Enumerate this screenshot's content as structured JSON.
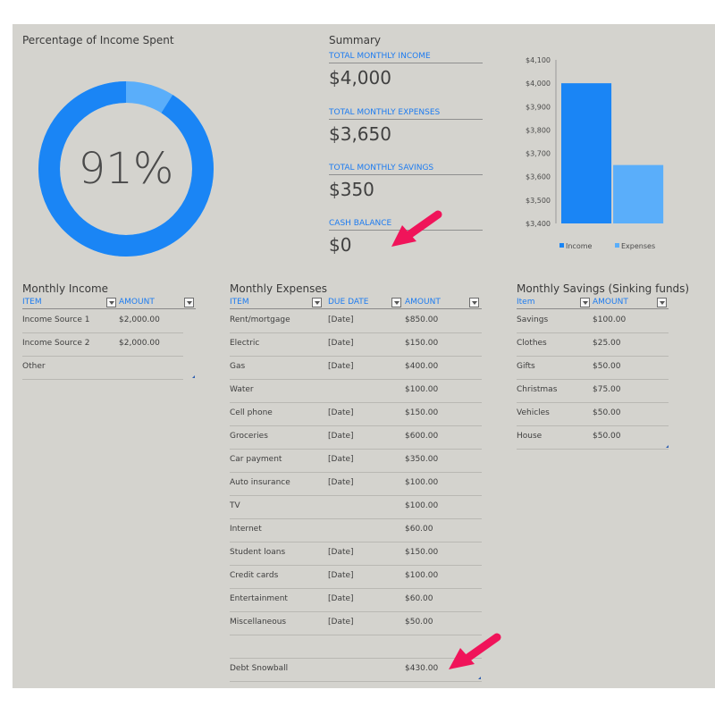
{
  "donut": {
    "title": "Percentage of Income Spent",
    "percent_label": "91%",
    "percent_value": 0.91,
    "colors": {
      "spent": "#1a85f5",
      "remaining": "#5aaefa"
    }
  },
  "summary": {
    "title": "Summary",
    "items": [
      {
        "label": "TOTAL MONTHLY INCOME",
        "value": "$4,000"
      },
      {
        "label": "TOTAL MONTHLY EXPENSES",
        "value": "$3,650"
      },
      {
        "label": "TOTAL MONTHLY SAVINGS",
        "value": "$350"
      },
      {
        "label": "CASH BALANCE",
        "value": "$0"
      }
    ]
  },
  "chart_data": {
    "type": "bar",
    "categories": [
      "Income",
      "Expenses"
    ],
    "values": [
      4000,
      3650
    ],
    "colors": [
      "#1a85f5",
      "#5aaefa"
    ],
    "ylim": [
      3400,
      4100
    ],
    "yticks": [
      "$3,400",
      "$3,500",
      "$3,600",
      "$3,700",
      "$3,800",
      "$3,900",
      "$4,000",
      "$4,100"
    ],
    "ytick_values": [
      3400,
      3500,
      3600,
      3700,
      3800,
      3900,
      4000,
      4100
    ],
    "legend": [
      "Income",
      "Expenses"
    ],
    "legend_position": "bottom",
    "grid": false
  },
  "income": {
    "title": "Monthly Income",
    "headers": [
      "ITEM",
      "AMOUNT"
    ],
    "rows": [
      [
        "Income Source 1",
        "$2,000.00"
      ],
      [
        "Income Source 2",
        "$2,000.00"
      ],
      [
        "Other",
        ""
      ]
    ]
  },
  "expenses": {
    "title": "Monthly Expenses",
    "headers": [
      "ITEM",
      "DUE DATE",
      "AMOUNT"
    ],
    "rows": [
      [
        "Rent/mortgage",
        "[Date]",
        "$850.00"
      ],
      [
        "Electric",
        "[Date]",
        "$150.00"
      ],
      [
        "Gas",
        "[Date]",
        "$400.00"
      ],
      [
        "Water",
        "",
        "$100.00"
      ],
      [
        "Cell phone",
        "[Date]",
        "$150.00"
      ],
      [
        "Groceries",
        "[Date]",
        "$600.00"
      ],
      [
        "Car payment",
        "[Date]",
        "$350.00"
      ],
      [
        "Auto insurance",
        "[Date]",
        "$100.00"
      ],
      [
        "TV",
        "",
        "$100.00"
      ],
      [
        "Internet",
        "",
        "$60.00"
      ],
      [
        "Student loans",
        "[Date]",
        "$150.00"
      ],
      [
        "Credit cards",
        "[Date]",
        "$100.00"
      ],
      [
        "Entertainment",
        "[Date]",
        "$60.00"
      ],
      [
        "Miscellaneous",
        "[Date]",
        "$50.00"
      ],
      [
        "",
        "",
        ""
      ],
      [
        "Debt Snowball",
        "",
        "$430.00"
      ]
    ]
  },
  "savings": {
    "title": "Monthly Savings (Sinking funds)",
    "headers": [
      "Item",
      "AMOUNT"
    ],
    "rows": [
      [
        "Savings",
        "$100.00"
      ],
      [
        "Clothes",
        "$25.00"
      ],
      [
        "Gifts",
        "$50.00"
      ],
      [
        "Christmas",
        "$75.00"
      ],
      [
        "Vehicles",
        "$50.00"
      ],
      [
        "House",
        "$50.00"
      ]
    ]
  },
  "annotations": {
    "arrow_color": "#f0145a"
  }
}
